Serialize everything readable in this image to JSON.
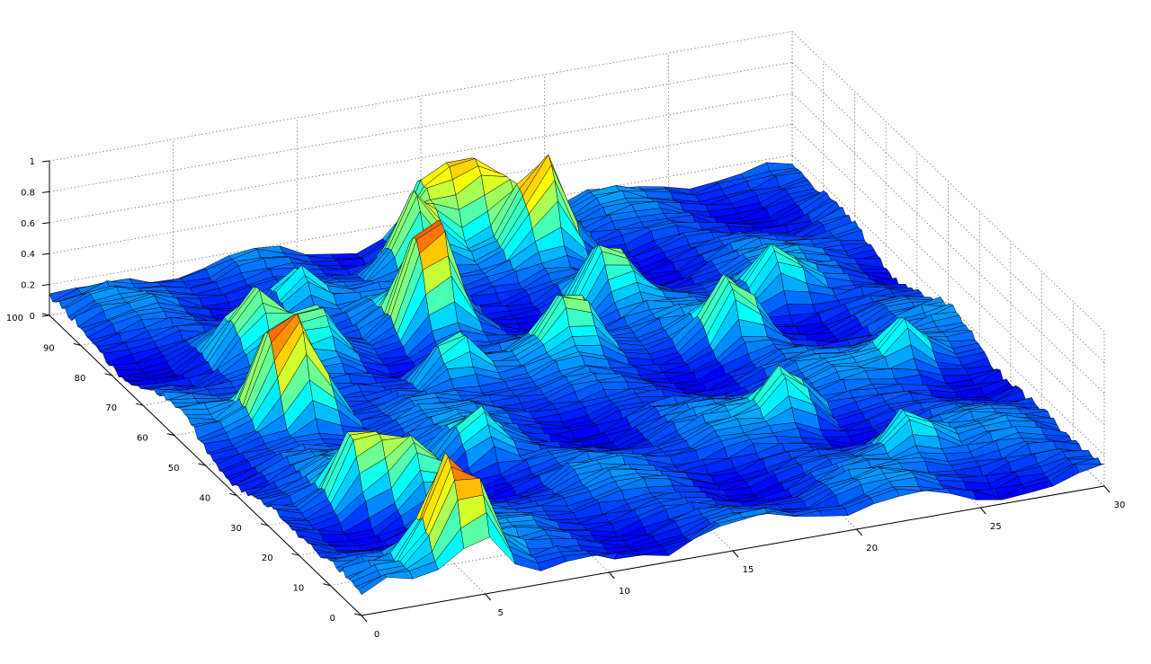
{
  "chart_data": {
    "type": "surface",
    "colormap": "jet",
    "grid": true,
    "x_ticks": [
      "0",
      "5",
      "10",
      "15",
      "20",
      "25",
      "30"
    ],
    "y_ticks": [
      "0",
      "10",
      "20",
      "30",
      "40",
      "50",
      "60",
      "70",
      "80",
      "90",
      "100"
    ],
    "z_ticks": [
      "0",
      "0.2",
      "0.4",
      "0.6",
      "0.8",
      "1"
    ],
    "xlim": [
      0,
      30
    ],
    "ylim": [
      0,
      100
    ],
    "zlim": [
      0,
      1
    ],
    "surface_grid": {
      "x_count": 30,
      "y_count": 100,
      "base_level": 0.12
    },
    "peaks": [
      {
        "x": 4.0,
        "y": 6,
        "height": 0.55
      },
      {
        "x": 5.0,
        "y": 3,
        "height": 0.48
      },
      {
        "x": 3.5,
        "y": 28,
        "height": 0.45
      },
      {
        "x": 5.5,
        "y": 25,
        "height": 0.42
      },
      {
        "x": 3.5,
        "y": 55,
        "height": 0.62
      },
      {
        "x": 4.5,
        "y": 52,
        "height": 0.5
      },
      {
        "x": 5.0,
        "y": 75,
        "height": 0.35
      },
      {
        "x": 7.0,
        "y": 70,
        "height": 0.3
      },
      {
        "x": 11.0,
        "y": 58,
        "height": 0.38
      },
      {
        "x": 12.0,
        "y": 73,
        "height": 0.72
      },
      {
        "x": 13.5,
        "y": 90,
        "height": 0.55
      },
      {
        "x": 15.0,
        "y": 96,
        "height": 0.5
      },
      {
        "x": 18.5,
        "y": 88,
        "height": 0.6
      },
      {
        "x": 17.0,
        "y": 95,
        "height": 0.5
      },
      {
        "x": 16.0,
        "y": 60,
        "height": 0.4
      },
      {
        "x": 19.0,
        "y": 72,
        "height": 0.38
      },
      {
        "x": 22.0,
        "y": 55,
        "height": 0.4
      },
      {
        "x": 21.0,
        "y": 30,
        "height": 0.35
      },
      {
        "x": 25.0,
        "y": 65,
        "height": 0.33
      },
      {
        "x": 27.0,
        "y": 40,
        "height": 0.3
      },
      {
        "x": 24.0,
        "y": 15,
        "height": 0.3
      },
      {
        "x": 9.0,
        "y": 35,
        "height": 0.3
      },
      {
        "x": 8.0,
        "y": 85,
        "height": 0.32
      }
    ]
  }
}
